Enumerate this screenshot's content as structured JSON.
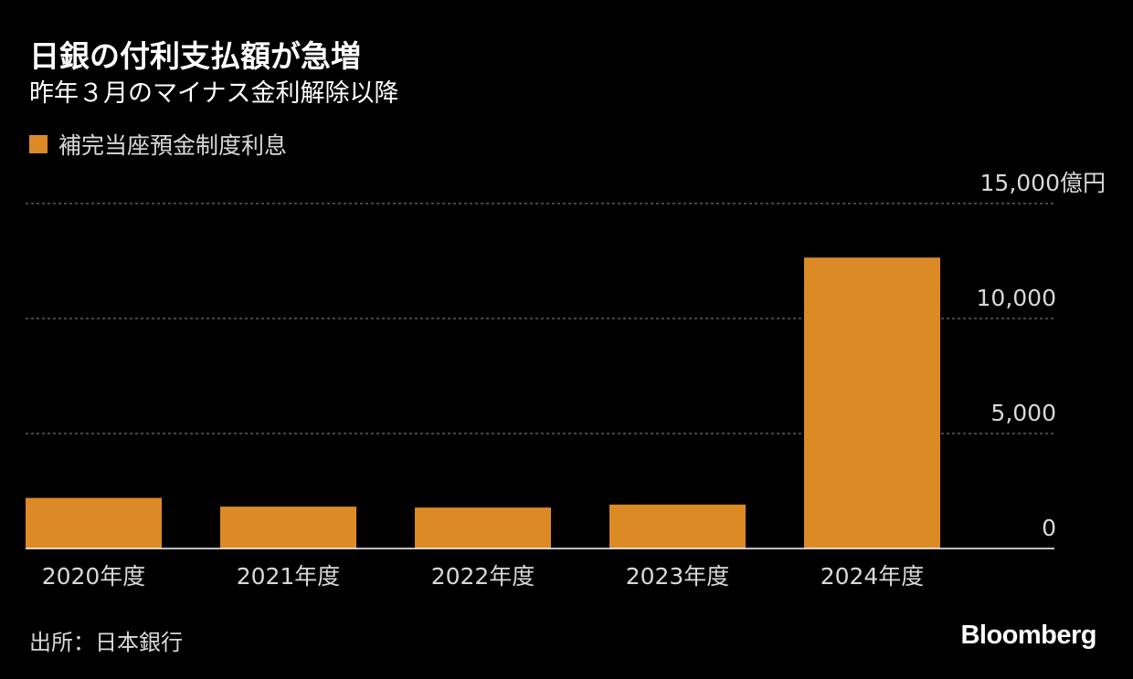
{
  "header": {
    "title": "日銀の付利支払額が急増",
    "subtitle": "昨年３月のマイナス金利解除以降"
  },
  "legend": {
    "label": "補完当座預金制度利息",
    "color": "#db8a26"
  },
  "footer": {
    "source": "出所：日本銀行",
    "brand": "Bloomberg"
  },
  "chart_data": {
    "type": "bar",
    "title": "日銀の付利支払額が急増",
    "subtitle": "昨年３月のマイナス金利解除以降",
    "categories": [
      "2020年度",
      "2021年度",
      "2022年度",
      "2023年度",
      "2024年度"
    ],
    "series": [
      {
        "name": "補完当座預金制度利息",
        "values": [
          2200,
          1820,
          1780,
          1910,
          12650
        ],
        "color": "#db8a26"
      }
    ],
    "ylim": [
      0,
      15000
    ],
    "y_ticks": [
      {
        "value": 0,
        "label": "0"
      },
      {
        "value": 5000,
        "label": "5,000"
      },
      {
        "value": 10000,
        "label": "10,000"
      },
      {
        "value": 15000,
        "label": "15,000億円"
      }
    ],
    "y_unit": "億円",
    "grid": true,
    "legend_position": "top-left"
  }
}
